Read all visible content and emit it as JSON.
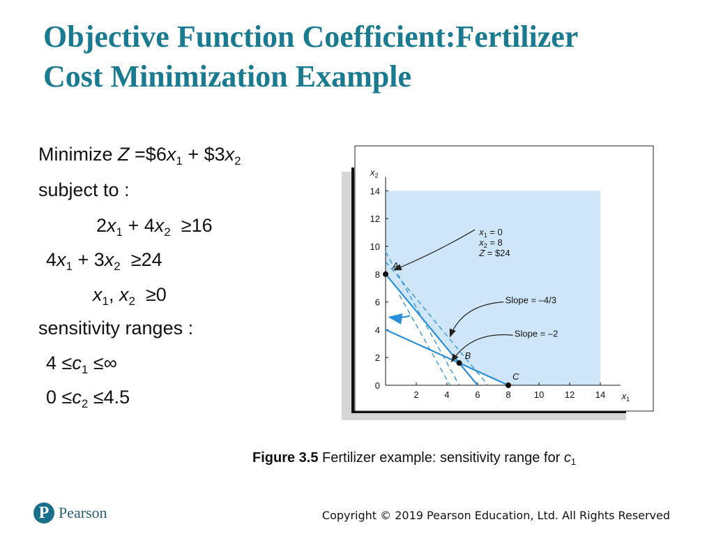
{
  "slide": {
    "title_line1": "Objective Function Coefficient:Fertilizer",
    "title_line2": "Cost Minimization Example"
  },
  "model": {
    "objective_prefix": "Minimize",
    "subject_to": "subject to",
    "sensitivity_label": "sensitivity ranges"
  },
  "chart_data": {
    "type": "line",
    "xlabel": "x1",
    "ylabel": "x2",
    "xlim": [
      0,
      15
    ],
    "ylim": [
      0,
      15
    ],
    "x_ticks": [
      "2",
      "4",
      "6",
      "8",
      "10",
      "12",
      "14"
    ],
    "y_ticks": [
      "0",
      "2",
      "4",
      "6",
      "8",
      "10",
      "12",
      "14"
    ],
    "feasible_region": [
      [
        0,
        8
      ],
      [
        4.8,
        1.6
      ],
      [
        8,
        0
      ],
      [
        14,
        0
      ],
      [
        14,
        14
      ],
      [
        0,
        14
      ]
    ],
    "constraints": [
      {
        "label": "2x1 + 4x2 = 16",
        "points": [
          [
            0,
            4
          ],
          [
            8,
            0
          ]
        ]
      },
      {
        "label": "4x1 + 3x2 = 24",
        "points": [
          [
            0,
            8
          ],
          [
            6,
            0
          ]
        ]
      }
    ],
    "dashed_lines": [
      {
        "label": "slope -4/3",
        "points": [
          [
            0,
            8.9
          ],
          [
            6.675,
            0
          ]
        ]
      },
      {
        "label": "slope -2",
        "points": [
          [
            0,
            9.6
          ],
          [
            4.8,
            0
          ]
        ]
      },
      {
        "label": "",
        "points": [
          [
            0.9,
            6.5
          ],
          [
            4.2,
            0
          ]
        ]
      }
    ],
    "points": [
      {
        "label": "A",
        "x": 0,
        "y": 8
      },
      {
        "label": "B",
        "x": 4.8,
        "y": 1.6
      },
      {
        "label": "C",
        "x": 8,
        "y": 0
      }
    ],
    "annotations": [
      {
        "lines": [
          "x1 = 0",
          "x2 = 8",
          "Z = $24"
        ],
        "points_to": "A"
      },
      {
        "text": "Slope = –4/3",
        "points_to": [
          2.0,
          6.8
        ]
      },
      {
        "text": "Slope = –2",
        "points_to": [
          3.4,
          2.8
        ]
      }
    ],
    "colors": {
      "region": "#cfe6f8",
      "constraint": "#2b8fd8",
      "arrow": "#2b8fd8",
      "frame_shadow": "#d6d6d6"
    }
  },
  "caption": {
    "bold": "Figure 3.5",
    "text": " Fertilizer example: sensitivity range for "
  },
  "footer": {
    "brand": "Pearson",
    "brand_initial": "P",
    "copyright": "Copyright © 2019 Pearson Education, Ltd. All Rights Reserved"
  }
}
